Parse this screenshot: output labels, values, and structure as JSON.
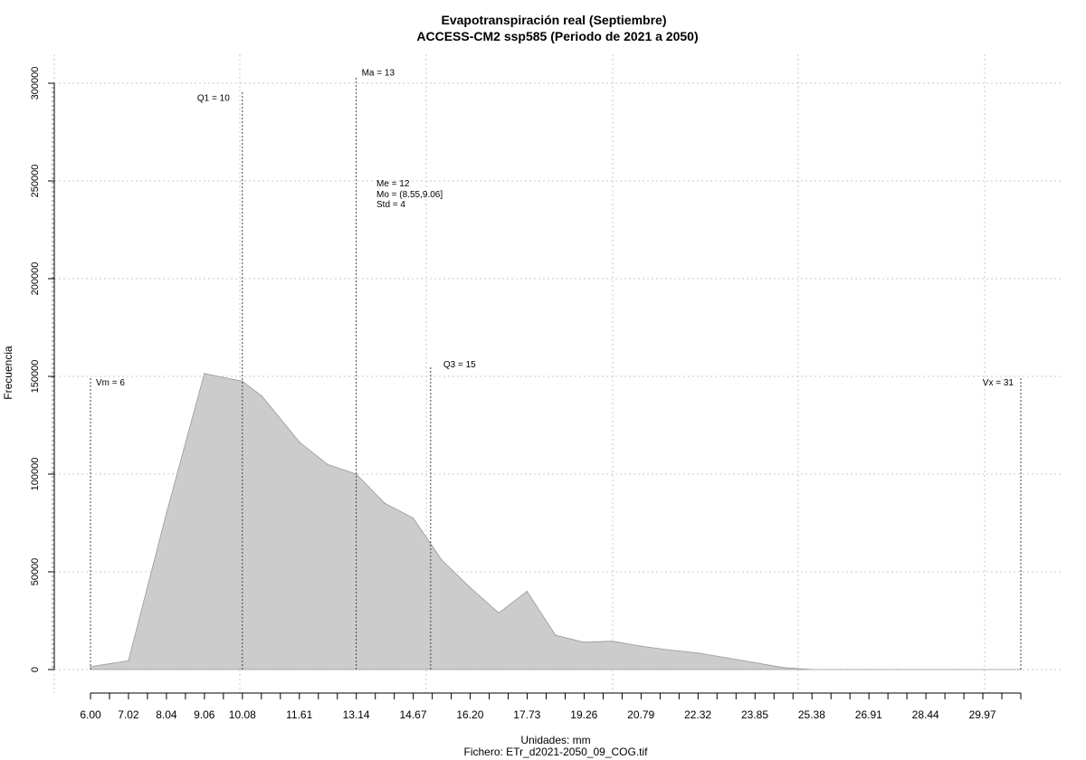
{
  "chart_data": {
    "type": "area",
    "title": "Evapotranspiración real (Septiembre)",
    "subtitle": "ACCESS-CM2 ssp585 (Periodo de 2021 a 2050)",
    "xlabel": "Unidades: mm",
    "ylabel": "Frecuencia",
    "footer": "Fichero: ETr_d2021-2050_09_COG.tif",
    "xlim": [
      6.0,
      31.0
    ],
    "ylim": [
      0,
      310000
    ],
    "grid": true,
    "x_tick_labels": [
      "6.00",
      "7.02",
      "8.04",
      "9.06",
      "10.08",
      "11.61",
      "13.14",
      "14.67",
      "16.20",
      "17.73",
      "19.26",
      "20.79",
      "22.32",
      "23.85",
      "25.38",
      "26.91",
      "28.44",
      "29.97"
    ],
    "x_major_ticks": [
      6.0,
      7.02,
      8.04,
      9.06,
      10.08,
      11.61,
      13.14,
      14.67,
      16.2,
      17.73,
      19.26,
      20.79,
      22.32,
      23.85,
      25.38,
      26.91,
      28.44,
      29.97
    ],
    "y_ticks": [
      0,
      50000,
      100000,
      150000,
      200000,
      250000,
      300000
    ],
    "y_tick_labels": [
      "0",
      "50000",
      "100000",
      "150000",
      "200000",
      "250000",
      "300000"
    ],
    "x": [
      6.0,
      7.02,
      8.04,
      9.06,
      10.08,
      10.6,
      11.61,
      12.37,
      13.14,
      13.91,
      14.67,
      15.44,
      16.2,
      16.97,
      17.73,
      18.5,
      19.26,
      20.03,
      20.79,
      21.56,
      22.32,
      23.09,
      23.85,
      24.62,
      25.38,
      26.15,
      26.91,
      27.68,
      28.44,
      29.21,
      29.97,
      31.0
    ],
    "values": [
      1500,
      4500,
      80000,
      151500,
      147500,
      140000,
      116500,
      105000,
      100000,
      85000,
      77500,
      56000,
      42000,
      29000,
      40000,
      17500,
      14000,
      14500,
      12000,
      10000,
      8500,
      6000,
      3500,
      1000,
      0,
      0,
      0,
      0,
      0,
      0,
      0,
      0
    ],
    "annotations": [
      {
        "label": "Vm = 6",
        "x": 6.0,
        "y_top": 150000
      },
      {
        "label": "Q1 = 10",
        "x": 10.08,
        "y_top": 296000
      },
      {
        "label": "Ma = 13",
        "x": 13.14,
        "y_top": 303000
      },
      {
        "label": "Q3 = 15",
        "x": 15.14,
        "y_top": 155000
      },
      {
        "label": "Vx = 31",
        "x": 31.0,
        "y_top": 150000
      }
    ],
    "stats_box": [
      "Me = 12",
      "Mo = (8.55,9.06]",
      "Std = 4"
    ]
  }
}
